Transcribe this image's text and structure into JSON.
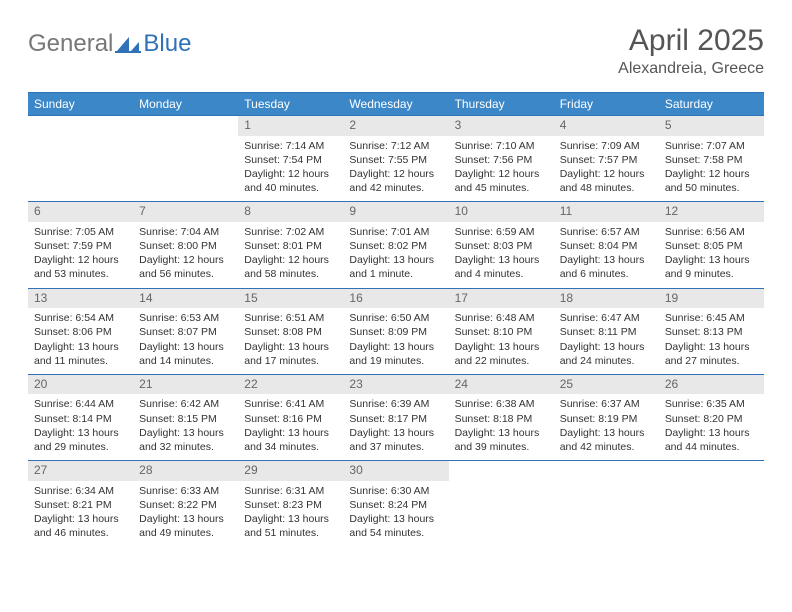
{
  "logo": {
    "text1": "General",
    "text2": "Blue"
  },
  "title": "April 2025",
  "location": "Alexandreia, Greece",
  "colors": {
    "header_bar": "#3b87c8",
    "border": "#2f72b8",
    "daynum_bg": "#e8e8e8",
    "text": "#333333",
    "title_text": "#555555"
  },
  "weekdays": [
    "Sunday",
    "Monday",
    "Tuesday",
    "Wednesday",
    "Thursday",
    "Friday",
    "Saturday"
  ],
  "weeks": [
    [
      null,
      null,
      {
        "n": "1",
        "sr": "Sunrise: 7:14 AM",
        "ss": "Sunset: 7:54 PM",
        "dl1": "Daylight: 12 hours",
        "dl2": "and 40 minutes."
      },
      {
        "n": "2",
        "sr": "Sunrise: 7:12 AM",
        "ss": "Sunset: 7:55 PM",
        "dl1": "Daylight: 12 hours",
        "dl2": "and 42 minutes."
      },
      {
        "n": "3",
        "sr": "Sunrise: 7:10 AM",
        "ss": "Sunset: 7:56 PM",
        "dl1": "Daylight: 12 hours",
        "dl2": "and 45 minutes."
      },
      {
        "n": "4",
        "sr": "Sunrise: 7:09 AM",
        "ss": "Sunset: 7:57 PM",
        "dl1": "Daylight: 12 hours",
        "dl2": "and 48 minutes."
      },
      {
        "n": "5",
        "sr": "Sunrise: 7:07 AM",
        "ss": "Sunset: 7:58 PM",
        "dl1": "Daylight: 12 hours",
        "dl2": "and 50 minutes."
      }
    ],
    [
      {
        "n": "6",
        "sr": "Sunrise: 7:05 AM",
        "ss": "Sunset: 7:59 PM",
        "dl1": "Daylight: 12 hours",
        "dl2": "and 53 minutes."
      },
      {
        "n": "7",
        "sr": "Sunrise: 7:04 AM",
        "ss": "Sunset: 8:00 PM",
        "dl1": "Daylight: 12 hours",
        "dl2": "and 56 minutes."
      },
      {
        "n": "8",
        "sr": "Sunrise: 7:02 AM",
        "ss": "Sunset: 8:01 PM",
        "dl1": "Daylight: 12 hours",
        "dl2": "and 58 minutes."
      },
      {
        "n": "9",
        "sr": "Sunrise: 7:01 AM",
        "ss": "Sunset: 8:02 PM",
        "dl1": "Daylight: 13 hours",
        "dl2": "and 1 minute."
      },
      {
        "n": "10",
        "sr": "Sunrise: 6:59 AM",
        "ss": "Sunset: 8:03 PM",
        "dl1": "Daylight: 13 hours",
        "dl2": "and 4 minutes."
      },
      {
        "n": "11",
        "sr": "Sunrise: 6:57 AM",
        "ss": "Sunset: 8:04 PM",
        "dl1": "Daylight: 13 hours",
        "dl2": "and 6 minutes."
      },
      {
        "n": "12",
        "sr": "Sunrise: 6:56 AM",
        "ss": "Sunset: 8:05 PM",
        "dl1": "Daylight: 13 hours",
        "dl2": "and 9 minutes."
      }
    ],
    [
      {
        "n": "13",
        "sr": "Sunrise: 6:54 AM",
        "ss": "Sunset: 8:06 PM",
        "dl1": "Daylight: 13 hours",
        "dl2": "and 11 minutes."
      },
      {
        "n": "14",
        "sr": "Sunrise: 6:53 AM",
        "ss": "Sunset: 8:07 PM",
        "dl1": "Daylight: 13 hours",
        "dl2": "and 14 minutes."
      },
      {
        "n": "15",
        "sr": "Sunrise: 6:51 AM",
        "ss": "Sunset: 8:08 PM",
        "dl1": "Daylight: 13 hours",
        "dl2": "and 17 minutes."
      },
      {
        "n": "16",
        "sr": "Sunrise: 6:50 AM",
        "ss": "Sunset: 8:09 PM",
        "dl1": "Daylight: 13 hours",
        "dl2": "and 19 minutes."
      },
      {
        "n": "17",
        "sr": "Sunrise: 6:48 AM",
        "ss": "Sunset: 8:10 PM",
        "dl1": "Daylight: 13 hours",
        "dl2": "and 22 minutes."
      },
      {
        "n": "18",
        "sr": "Sunrise: 6:47 AM",
        "ss": "Sunset: 8:11 PM",
        "dl1": "Daylight: 13 hours",
        "dl2": "and 24 minutes."
      },
      {
        "n": "19",
        "sr": "Sunrise: 6:45 AM",
        "ss": "Sunset: 8:13 PM",
        "dl1": "Daylight: 13 hours",
        "dl2": "and 27 minutes."
      }
    ],
    [
      {
        "n": "20",
        "sr": "Sunrise: 6:44 AM",
        "ss": "Sunset: 8:14 PM",
        "dl1": "Daylight: 13 hours",
        "dl2": "and 29 minutes."
      },
      {
        "n": "21",
        "sr": "Sunrise: 6:42 AM",
        "ss": "Sunset: 8:15 PM",
        "dl1": "Daylight: 13 hours",
        "dl2": "and 32 minutes."
      },
      {
        "n": "22",
        "sr": "Sunrise: 6:41 AM",
        "ss": "Sunset: 8:16 PM",
        "dl1": "Daylight: 13 hours",
        "dl2": "and 34 minutes."
      },
      {
        "n": "23",
        "sr": "Sunrise: 6:39 AM",
        "ss": "Sunset: 8:17 PM",
        "dl1": "Daylight: 13 hours",
        "dl2": "and 37 minutes."
      },
      {
        "n": "24",
        "sr": "Sunrise: 6:38 AM",
        "ss": "Sunset: 8:18 PM",
        "dl1": "Daylight: 13 hours",
        "dl2": "and 39 minutes."
      },
      {
        "n": "25",
        "sr": "Sunrise: 6:37 AM",
        "ss": "Sunset: 8:19 PM",
        "dl1": "Daylight: 13 hours",
        "dl2": "and 42 minutes."
      },
      {
        "n": "26",
        "sr": "Sunrise: 6:35 AM",
        "ss": "Sunset: 8:20 PM",
        "dl1": "Daylight: 13 hours",
        "dl2": "and 44 minutes."
      }
    ],
    [
      {
        "n": "27",
        "sr": "Sunrise: 6:34 AM",
        "ss": "Sunset: 8:21 PM",
        "dl1": "Daylight: 13 hours",
        "dl2": "and 46 minutes."
      },
      {
        "n": "28",
        "sr": "Sunrise: 6:33 AM",
        "ss": "Sunset: 8:22 PM",
        "dl1": "Daylight: 13 hours",
        "dl2": "and 49 minutes."
      },
      {
        "n": "29",
        "sr": "Sunrise: 6:31 AM",
        "ss": "Sunset: 8:23 PM",
        "dl1": "Daylight: 13 hours",
        "dl2": "and 51 minutes."
      },
      {
        "n": "30",
        "sr": "Sunrise: 6:30 AM",
        "ss": "Sunset: 8:24 PM",
        "dl1": "Daylight: 13 hours",
        "dl2": "and 54 minutes."
      },
      null,
      null,
      null
    ]
  ]
}
